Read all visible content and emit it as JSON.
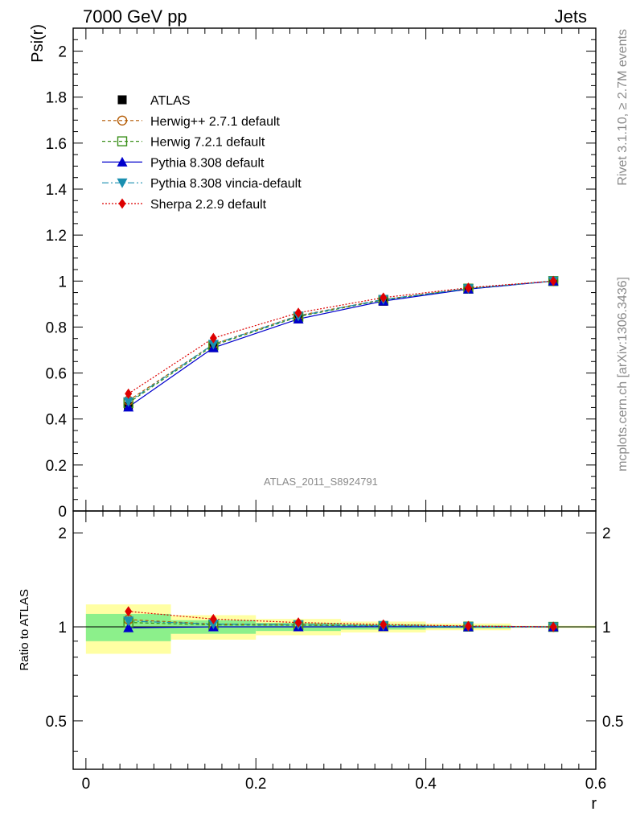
{
  "header": {
    "energy_label": "7000 GeV pp",
    "process_label": "Jets",
    "side_text_top": "Rivet 3.1.10, ≥ 2.7M events",
    "side_text_bottom": "mcplots.cern.ch [arXiv:1306.3436]",
    "analysis_id": "ATLAS_2011_S8924791"
  },
  "chart_data": {
    "type": "line",
    "main": {
      "ylabel": "Psi(r)",
      "ylim": [
        0,
        2.1
      ],
      "yticks": [
        "0",
        "0.2",
        "0.4",
        "0.6",
        "0.8",
        "1",
        "1.2",
        "1.4",
        "1.6",
        "1.8",
        "2"
      ]
    },
    "ratio": {
      "ylabel": "Ratio to ATLAS",
      "ylim": [
        0.35,
        2.35
      ],
      "scale": "log",
      "yticks": [
        "0.5",
        "1",
        "2"
      ]
    },
    "xlabel": "r",
    "xlim": [
      -0.015,
      0.6
    ],
    "xticks": [
      "0",
      "0.2",
      "0.4",
      "0.6"
    ],
    "x": [
      0.05,
      0.15,
      0.25,
      0.35,
      0.45,
      0.55
    ],
    "data": {
      "name": "ATLAS",
      "values": [
        0.455,
        0.71,
        0.835,
        0.912,
        0.965,
        1.0
      ],
      "band_inner": [
        0.1,
        0.05,
        0.03,
        0.02,
        0.01,
        0.004
      ],
      "band_outer": [
        0.18,
        0.09,
        0.06,
        0.04,
        0.025,
        0.008
      ]
    },
    "series": [
      {
        "name": "Herwig++ 2.7.1 default",
        "color": "#b35900",
        "dash": "4,3",
        "marker": "open-circle",
        "values": [
          0.48,
          0.725,
          0.85,
          0.92,
          0.968,
          1.0
        ]
      },
      {
        "name": "Herwig 7.2.1 default",
        "color": "#3a8f1a",
        "dash": "4,3",
        "marker": "open-square",
        "values": [
          0.47,
          0.72,
          0.845,
          0.918,
          0.967,
          1.0
        ]
      },
      {
        "name": "Pythia 8.308 default",
        "color": "#0000cc",
        "dash": "",
        "marker": "triangle-up",
        "values": [
          0.452,
          0.71,
          0.835,
          0.913,
          0.965,
          1.0
        ]
      },
      {
        "name": "Pythia 8.308 vincia-default",
        "color": "#1a8fb0",
        "dash": "8,3,2,3",
        "marker": "triangle-down",
        "values": [
          0.475,
          0.725,
          0.848,
          0.92,
          0.967,
          1.0
        ]
      },
      {
        "name": "Sherpa 2.2.9 default",
        "color": "#dd0000",
        "dash": "2,2",
        "marker": "diamond",
        "values": [
          0.51,
          0.752,
          0.862,
          0.928,
          0.971,
          1.0
        ]
      }
    ],
    "legend_position": "top-left"
  }
}
